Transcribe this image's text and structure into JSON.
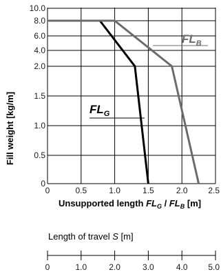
{
  "chart_data": {
    "type": "line",
    "ylabel": "Fill weight [kg/m]",
    "xlabel": {
      "prefix": "Unsupported length ",
      "var1": "FL",
      "sub1": "G",
      "separator": " / ",
      "var2": "FL",
      "sub2": "B",
      "suffix": " [m]"
    },
    "x_ticks": [
      "0",
      "0.5",
      "1.0",
      "1.5",
      "2.0",
      "2.5"
    ],
    "xlim": [
      0,
      2.5
    ],
    "y_ticks": [
      {
        "label": "0",
        "value": 0
      },
      {
        "label": "0.5",
        "value": 0.5
      },
      {
        "label": "1.0",
        "value": 1.0
      },
      {
        "label": "1.5",
        "value": 1.5
      },
      {
        "label": "2.0",
        "value": 2.0
      },
      {
        "label": "4.0",
        "value": 4.0
      },
      {
        "label": "6.0",
        "value": 6.0
      },
      {
        "label": "8.0",
        "value": 8.0
      },
      {
        "label": "10.0",
        "value": 10.0
      }
    ],
    "y_scale": "piecewise: linear 0–2.0 (2.0 per 2 grid steps), compressed 2.0–10.0",
    "grid": true,
    "series": [
      {
        "name": "FL_G",
        "label_main": "FL",
        "label_sub": "G",
        "color": "#000000",
        "points": [
          [
            0,
            8.0
          ],
          [
            0.78,
            8.0
          ],
          [
            1.3,
            2.0
          ],
          [
            1.5,
            0
          ]
        ]
      },
      {
        "name": "FL_B",
        "label_main": "FL",
        "label_sub": "B",
        "color": "#6b6b6b",
        "points": [
          [
            0,
            8.0
          ],
          [
            1.0,
            8.0
          ],
          [
            1.85,
            2.0
          ],
          [
            2.25,
            0
          ]
        ]
      }
    ],
    "secondary_axis": {
      "title_prefix": "Length of travel ",
      "title_var": "S",
      "title_suffix": " [m]",
      "ticks": [
        "0",
        "1.0",
        "2.0",
        "3.0",
        "4.0",
        "5.0"
      ],
      "range": [
        0,
        5.0
      ]
    }
  }
}
